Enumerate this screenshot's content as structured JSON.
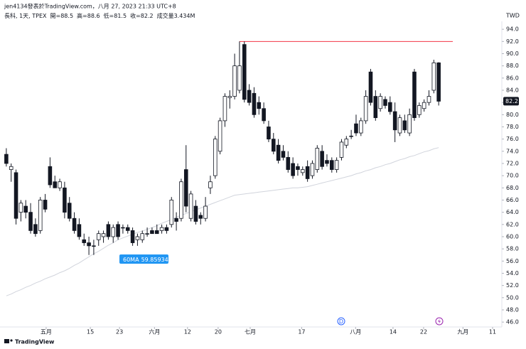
{
  "chart_data": {
    "type": "candlestick",
    "title": "jen4134發表於TradingView.com，八月 27, 2023 21:33 UTC+8",
    "symbol": "長科, 1天, TPEX",
    "legend_labels": [
      "開=",
      "高=",
      "低=",
      "收="
    ],
    "volume_label": "成交量",
    "volume": "3.434M",
    "currency": "TWD",
    "brand": "TradingView",
    "dividend_marker": "D",
    "up_color": "#ffffff",
    "down_color": "#131722",
    "ohlc": [
      [
        73.5,
        74.5,
        71.5,
        72
      ],
      [
        71,
        72,
        69,
        71.5
      ],
      [
        70.5,
        71,
        62,
        63
      ],
      [
        64,
        66,
        62.5,
        65.5
      ],
      [
        65,
        66,
        63,
        64
      ],
      [
        64,
        65.5,
        60.5,
        61
      ],
      [
        62,
        63,
        60,
        60.5
      ],
      [
        61,
        66.5,
        60.5,
        66
      ],
      [
        66,
        67,
        64,
        64.5
      ],
      [
        71.5,
        73,
        68,
        68.5
      ],
      [
        69,
        70,
        68,
        68
      ],
      [
        68,
        69.5,
        67.5,
        69
      ],
      [
        68,
        69,
        63,
        64
      ],
      [
        65.5,
        66.5,
        62.5,
        63
      ],
      [
        63,
        64,
        60.5,
        61
      ],
      [
        62,
        63,
        59.5,
        60
      ],
      [
        59.5,
        60.5,
        58.5,
        59
      ],
      [
        59,
        60,
        57,
        58.5
      ],
      [
        58.5,
        59.5,
        57,
        58.5
      ],
      [
        59.5,
        61,
        58.5,
        60.5
      ],
      [
        60,
        61,
        59,
        60.5
      ],
      [
        62,
        62.5,
        59.5,
        60
      ],
      [
        60,
        62,
        59,
        61.5
      ],
      [
        62,
        62.5,
        59.5,
        60
      ],
      [
        61.5,
        62,
        60.5,
        61.5
      ],
      [
        61.5,
        62,
        60.5,
        61
      ],
      [
        61,
        61.5,
        58.5,
        59
      ],
      [
        59.5,
        60.5,
        58.5,
        60
      ],
      [
        59.5,
        61,
        59,
        60.5
      ],
      [
        60.5,
        61.5,
        60,
        60.5
      ],
      [
        61,
        61.5,
        60.5,
        60.5
      ],
      [
        61,
        62,
        60.5,
        60.5
      ],
      [
        61,
        62,
        60.5,
        61.5
      ],
      [
        61.5,
        62,
        60.5,
        61
      ],
      [
        62,
        66.5,
        61.5,
        66
      ],
      [
        63,
        64,
        61,
        62.5
      ],
      [
        63,
        69.5,
        62.5,
        69
      ],
      [
        71,
        75,
        64,
        65
      ],
      [
        63,
        67.5,
        62.5,
        67
      ],
      [
        65,
        66,
        62,
        62.5
      ],
      [
        63.5,
        64,
        62,
        63
      ],
      [
        63,
        66.5,
        62.5,
        65
      ],
      [
        68,
        70,
        67,
        69
      ],
      [
        70,
        76.5,
        69.5,
        76
      ],
      [
        74,
        79.5,
        73.5,
        79
      ],
      [
        79,
        83.5,
        78,
        83
      ],
      [
        82.8,
        84,
        81,
        83
      ],
      [
        83,
        90,
        82.5,
        88
      ],
      [
        84,
        92,
        83.5,
        88
      ],
      [
        91.5,
        92,
        82,
        82.5
      ],
      [
        84,
        85,
        81.5,
        82
      ],
      [
        83.5,
        84.5,
        79.5,
        80
      ],
      [
        82,
        83,
        80,
        81
      ],
      [
        81,
        82,
        78.5,
        79
      ],
      [
        78,
        79,
        75.5,
        76
      ],
      [
        76,
        77,
        73.5,
        74
      ],
      [
        75,
        76,
        72,
        72.5
      ],
      [
        74,
        75,
        72.5,
        73
      ],
      [
        73,
        74,
        70.5,
        71
      ],
      [
        72,
        73,
        69.5,
        70
      ],
      [
        71.5,
        72,
        70,
        71
      ],
      [
        70.5,
        71.5,
        70,
        71
      ],
      [
        71.5,
        72.5,
        69,
        69.5
      ],
      [
        70,
        72.5,
        69.5,
        72
      ],
      [
        71,
        75,
        70.5,
        74.5
      ],
      [
        74,
        75,
        71,
        71.5
      ],
      [
        72.5,
        73.5,
        71.5,
        72
      ],
      [
        72.5,
        73,
        70.5,
        71
      ],
      [
        71,
        73,
        70.5,
        72.5
      ],
      [
        73,
        76,
        72.5,
        75.5
      ],
      [
        75,
        76.5,
        74.5,
        76
      ],
      [
        76.5,
        77.5,
        76,
        76.5
      ],
      [
        78.5,
        80,
        76.5,
        77
      ],
      [
        77,
        79.5,
        76.5,
        79
      ],
      [
        79,
        84,
        78.5,
        83
      ],
      [
        87,
        87.5,
        81.5,
        82
      ],
      [
        83,
        84,
        79,
        79.5
      ],
      [
        81,
        83.5,
        80.5,
        83
      ],
      [
        82.5,
        83,
        81,
        81.5
      ],
      [
        82,
        83,
        80,
        80.5
      ],
      [
        80.5,
        82,
        75.5,
        77.5
      ],
      [
        77,
        80,
        76.5,
        79.5
      ],
      [
        79,
        80,
        77,
        77.5
      ],
      [
        77,
        81,
        76.5,
        80
      ],
      [
        87,
        87.5,
        79,
        79.5
      ],
      [
        80,
        82,
        79.5,
        81.5
      ],
      [
        81,
        82.5,
        80.5,
        82
      ],
      [
        82,
        84,
        81.5,
        83
      ],
      [
        84,
        89,
        83.5,
        88.5
      ],
      [
        88.5,
        88.6,
        81.5,
        82.2
      ]
    ],
    "ma": {
      "name": "60MA",
      "tooltip_value": 59.85934482,
      "color": "#d1d4dc",
      "values": [
        50.3,
        50.6,
        51.0,
        51.3,
        51.7,
        52.0,
        52.4,
        52.7,
        53.1,
        53.4,
        53.7,
        54.1,
        54.4,
        54.8,
        55.3,
        55.7,
        56.2,
        56.7,
        57.2,
        57.6,
        58.1,
        58.6,
        59.0,
        59.5,
        59.8,
        60.1,
        60.4,
        60.7,
        60.9,
        61.2,
        61.5,
        61.8,
        62.2,
        62.5,
        62.8,
        63.2,
        63.5,
        63.8,
        64.1,
        64.4,
        64.7,
        65.0,
        65.3,
        65.6,
        65.9,
        66.2,
        66.5,
        66.8,
        66.9,
        67.0,
        67.1,
        67.2,
        67.3,
        67.4,
        67.5,
        67.6,
        67.7,
        67.8,
        67.9,
        68.0,
        68.0,
        68.1,
        68.2,
        68.4,
        68.6,
        68.8,
        69.0,
        69.2,
        69.4,
        69.6,
        69.8,
        70.0,
        70.3,
        70.5,
        70.8,
        71.0,
        71.3,
        71.5,
        71.8,
        72.0,
        72.3,
        72.6,
        72.8,
        73.1,
        73.3,
        73.6,
        73.9,
        74.1,
        74.4,
        74.6
      ]
    },
    "hline": {
      "value": 92,
      "color": "#f23645"
    },
    "xlim": [
      -1.3,
      102
    ],
    "xticks": [
      {
        "value": 8.2,
        "label": "五月"
      },
      {
        "value": 17.3,
        "label": "15"
      },
      {
        "value": 23.3,
        "label": "23"
      },
      {
        "value": 30.5,
        "label": "六月"
      },
      {
        "value": 37.3,
        "label": "12"
      },
      {
        "value": 43.6,
        "label": "20"
      },
      {
        "value": 50.2,
        "label": "七月"
      },
      {
        "value": 60.8,
        "label": "17"
      },
      {
        "value": 71.9,
        "label": "八月"
      },
      {
        "value": 79.6,
        "label": "14"
      },
      {
        "value": 85.9,
        "label": "22"
      },
      {
        "value": 94,
        "label": "九月"
      },
      {
        "value": 100.1,
        "label": "11"
      }
    ],
    "ylim": [
      45.2,
      95.3
    ],
    "yticks": [
      {
        "value": 46,
        "label": "46.0"
      },
      {
        "value": 48,
        "label": "48.0"
      },
      {
        "value": 50,
        "label": "50.0"
      },
      {
        "value": 52,
        "label": "52.0"
      },
      {
        "value": 54,
        "label": "54.0"
      },
      {
        "value": 56,
        "label": "56.0"
      },
      {
        "value": 58,
        "label": "58.0"
      },
      {
        "value": 60,
        "label": "60.0"
      },
      {
        "value": 62,
        "label": "62.0"
      },
      {
        "value": 64,
        "label": "64.0"
      },
      {
        "value": 66,
        "label": "66.0"
      },
      {
        "value": 68,
        "label": "68.0"
      },
      {
        "value": 70,
        "label": "70.0"
      },
      {
        "value": 72,
        "label": "72.0"
      },
      {
        "value": 74,
        "label": "74.0"
      },
      {
        "value": 76,
        "label": "76.0"
      },
      {
        "value": 78,
        "label": "78.0"
      },
      {
        "value": 80,
        "label": "80.0"
      },
      {
        "value": 82,
        "label": "82.0"
      },
      {
        "value": 84,
        "label": "84.0"
      },
      {
        "value": 86,
        "label": "86.0"
      },
      {
        "value": 88,
        "label": "88.0"
      },
      {
        "value": 90,
        "label": "90.0"
      },
      {
        "value": 92,
        "label": "92.0"
      },
      {
        "value": 94,
        "label": "94.0"
      }
    ]
  }
}
